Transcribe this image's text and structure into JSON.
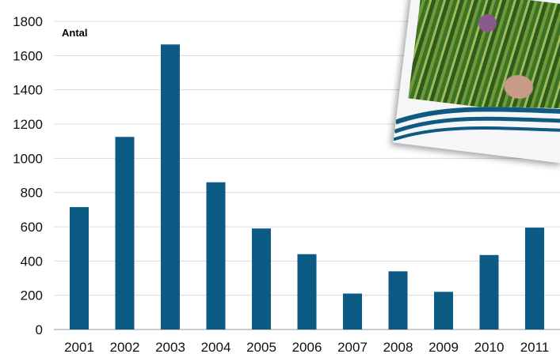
{
  "chart_data": {
    "type": "bar",
    "title": "",
    "ylabel": "Antal",
    "xlabel": "",
    "categories": [
      "2001",
      "2002",
      "2003",
      "2004",
      "2005",
      "2006",
      "2007",
      "2008",
      "2009",
      "2010",
      "2011"
    ],
    "values": [
      715,
      1125,
      1665,
      860,
      590,
      440,
      210,
      340,
      220,
      435,
      595
    ],
    "ylim": [
      0,
      1800
    ],
    "yticks": [
      "0",
      "200",
      "400",
      "600",
      "800",
      "1000",
      "1200",
      "1400",
      "1600",
      "1800"
    ],
    "bar_color": "#0b5b85",
    "grid": true
  },
  "decor": {
    "photo_icon": "crop-field-photo"
  }
}
